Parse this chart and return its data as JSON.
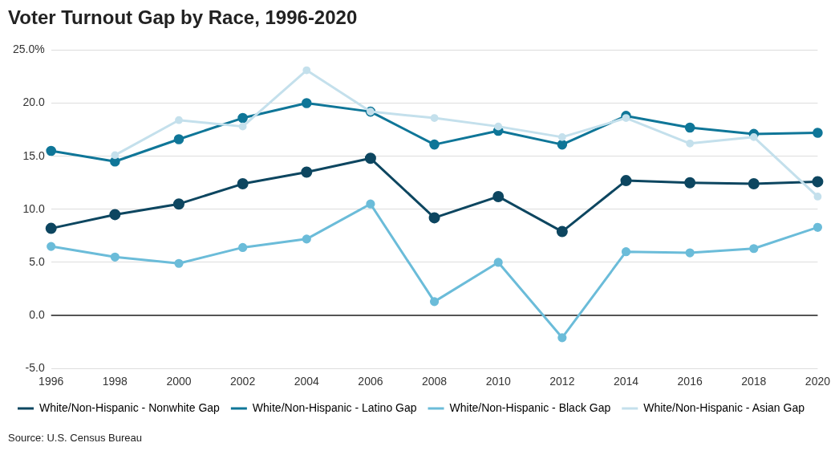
{
  "chart_data": {
    "type": "line",
    "title": "Voter Turnout Gap by Race, 1996-2020",
    "categories": [
      "1996",
      "1998",
      "2000",
      "2002",
      "2004",
      "2006",
      "2008",
      "2010",
      "2012",
      "2014",
      "2016",
      "2018",
      "2020"
    ],
    "series": [
      {
        "name": "White/Non-Hispanic - Nonwhite Gap",
        "color": "#0d4660",
        "values": [
          8.2,
          9.5,
          10.5,
          12.4,
          13.5,
          14.8,
          9.2,
          11.2,
          7.9,
          12.7,
          12.5,
          12.4,
          12.6
        ]
      },
      {
        "name": "White/Non-Hispanic - Latino Gap",
        "color": "#0f7698",
        "values": [
          15.5,
          14.5,
          16.6,
          18.6,
          20.0,
          19.2,
          16.1,
          17.4,
          16.1,
          18.8,
          17.7,
          17.1,
          17.2
        ]
      },
      {
        "name": "White/Non-Hispanic - Black Gap",
        "color": "#6bbcd9",
        "values": [
          6.5,
          5.5,
          4.9,
          6.4,
          7.2,
          10.5,
          1.3,
          5.0,
          -2.1,
          6.0,
          5.9,
          6.3,
          8.3
        ]
      },
      {
        "name": "White/Non-Hispanic - Asian Gap",
        "color": "#c4e0ec",
        "values": [
          null,
          15.1,
          18.4,
          17.8,
          23.1,
          19.2,
          18.6,
          17.8,
          16.8,
          18.6,
          16.2,
          16.8,
          11.2
        ]
      }
    ],
    "ylim": [
      -5,
      25
    ],
    "yticks": [
      {
        "value": -5,
        "label": "-5.0"
      },
      {
        "value": 0,
        "label": "0.0"
      },
      {
        "value": 5,
        "label": "5.0"
      },
      {
        "value": 10,
        "label": "10.0"
      },
      {
        "value": 15,
        "label": "15.0"
      },
      {
        "value": 20,
        "label": "20.0"
      },
      {
        "value": 25,
        "label": "25.0%"
      }
    ],
    "ref_lines": [
      {
        "axis": "y",
        "value": 0,
        "color": "#222222"
      }
    ],
    "grid": "y",
    "legend": "bottom",
    "marker": "circle",
    "line_style": "solid",
    "annotations": [
      "Source: U.S. Census Bureau"
    ]
  }
}
